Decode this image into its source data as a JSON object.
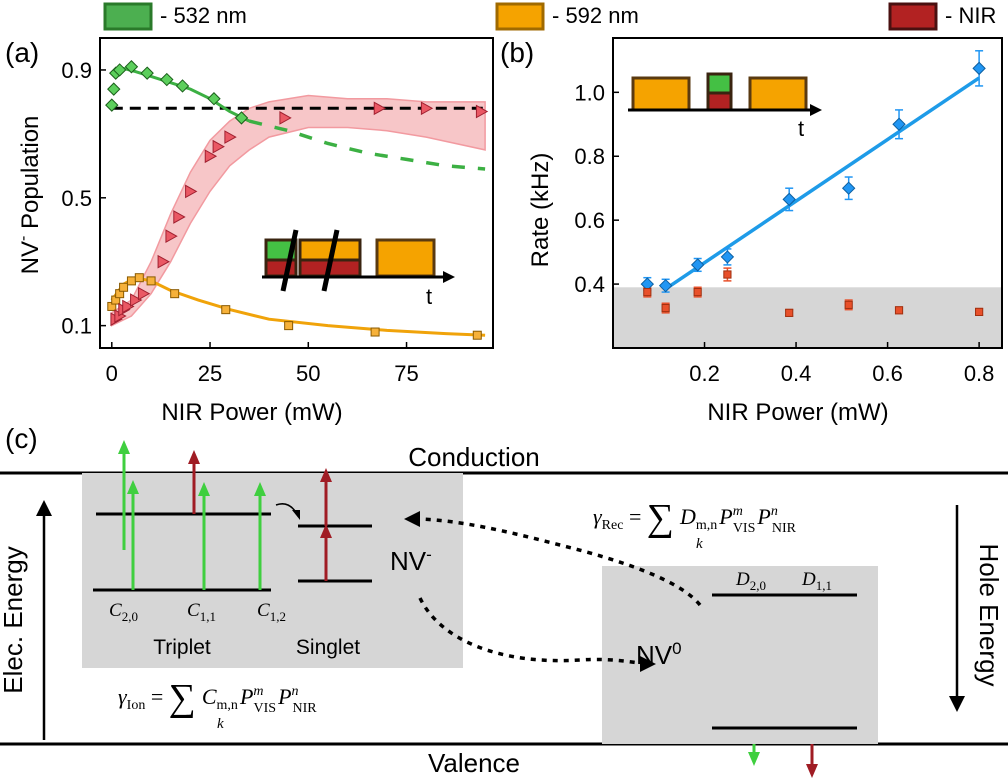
{
  "legend": [
    {
      "label": "- 532 nm",
      "color": "#4caf50",
      "edge": "#2a7a2a"
    },
    {
      "label": "- 592 nm",
      "color": "#f5a300",
      "edge": "#a06a00"
    },
    {
      "label": "- NIR",
      "color": "#b22222",
      "edge": "#4a1010"
    }
  ],
  "panel_a": {
    "label": "(a)",
    "pulse_t": "t"
  },
  "panel_b": {
    "label": "(b)",
    "pulse_t": "t"
  },
  "panel_c": {
    "label": "(c)",
    "conduction": "Conduction",
    "valence": "Valence",
    "elec_energy": "Elec. Energy",
    "hole_energy": "Hole Energy",
    "nv_minus": "NV",
    "nv_minus_sup": "-",
    "nv_zero": "NV",
    "nv_zero_sup": "0",
    "triplet": "Triplet",
    "singlet": "Singlet",
    "c20": "C",
    "c20_sub": "2,0",
    "c11": "C",
    "c11_sub": "1,1",
    "c12": "C",
    "c12_sub": "1,2",
    "d20": "D",
    "d20_sub": "2,0",
    "d11": "D",
    "d11_sub": "1,1",
    "gamma_rec": {
      "lhs": "γ",
      "lhs_sub": "Rec",
      "eq": " = ",
      "sum": "∑",
      "sum_idx": "k",
      "term": "D",
      "term_sub": "m,n",
      "p1": "P",
      "p1_sup": "m",
      "p1_sub": "VIS",
      "p2": "P",
      "p2_sup": "n",
      "p2_sub": "NIR"
    },
    "gamma_ion": {
      "lhs": "γ",
      "lhs_sub": "Ion",
      "eq": " = ",
      "sum": "∑",
      "sum_idx": "k",
      "term": "C",
      "term_sub": "m,n",
      "p1": "P",
      "p1_sup": "m",
      "p1_sub": "VIS",
      "p2": "P",
      "p2_sup": "n",
      "p2_sub": "NIR"
    }
  },
  "chart_data": [
    {
      "type": "line",
      "panel": "a",
      "xlabel": "NIR Power (mW)",
      "ylabel_main": "NV",
      "ylabel_sup": "-",
      "ylabel_rest": " Population",
      "xlim": [
        -3,
        97
      ],
      "ylim": [
        0.03,
        1.0
      ],
      "xticks": [
        0,
        25,
        50,
        75
      ],
      "yticks": [
        0.1,
        0.5,
        0.9
      ],
      "reference_line": 0.78,
      "series": [
        {
          "name": "532 nm",
          "color": "#3cb043",
          "marker": "diamond",
          "x": [
            0,
            0.5,
            1,
            2,
            5,
            9,
            14,
            18,
            26,
            33
          ],
          "y": [
            0.79,
            0.84,
            0.89,
            0.9,
            0.91,
            0.89,
            0.87,
            0.85,
            0.81,
            0.75
          ],
          "fit_x": [
            0,
            3,
            6,
            10,
            15,
            20,
            25,
            30,
            35
          ],
          "fit_y": [
            0.89,
            0.905,
            0.895,
            0.88,
            0.86,
            0.84,
            0.81,
            0.77,
            0.74
          ],
          "extrap_x": [
            35,
            45,
            55,
            65,
            75,
            85,
            95
          ],
          "extrap_y": [
            0.74,
            0.71,
            0.67,
            0.64,
            0.62,
            0.6,
            0.59
          ]
        },
        {
          "name": "592 nm",
          "color": "#f0a30a",
          "marker": "square",
          "x": [
            0,
            1,
            2,
            3,
            5,
            7,
            10,
            16,
            29,
            45,
            67,
            93
          ],
          "y": [
            0.16,
            0.18,
            0.2,
            0.22,
            0.24,
            0.25,
            0.24,
            0.2,
            0.15,
            0.1,
            0.08,
            0.07
          ],
          "fit_x": [
            0,
            3,
            6,
            10,
            15,
            22,
            30,
            40,
            55,
            70,
            85,
            95
          ],
          "fit_y": [
            0.18,
            0.23,
            0.25,
            0.24,
            0.21,
            0.18,
            0.15,
            0.12,
            0.1,
            0.085,
            0.075,
            0.07
          ]
        },
        {
          "name": "NIR",
          "color": "#e0525c",
          "marker": "triangle",
          "x": [
            1,
            2,
            3,
            4,
            6,
            8,
            13,
            15,
            17,
            20,
            25,
            27,
            30,
            44,
            68,
            80,
            94
          ],
          "y": [
            0.12,
            0.13,
            0.15,
            0.16,
            0.18,
            0.2,
            0.3,
            0.38,
            0.44,
            0.52,
            0.63,
            0.66,
            0.69,
            0.75,
            0.78,
            0.78,
            0.77
          ],
          "band_x": [
            0,
            5,
            10,
            15,
            20,
            25,
            30,
            35,
            40,
            50,
            60,
            70,
            80,
            95
          ],
          "band_lo": [
            0.1,
            0.13,
            0.2,
            0.3,
            0.42,
            0.52,
            0.6,
            0.65,
            0.69,
            0.72,
            0.72,
            0.71,
            0.69,
            0.65
          ],
          "band_hi": [
            0.14,
            0.18,
            0.3,
            0.45,
            0.58,
            0.68,
            0.74,
            0.78,
            0.8,
            0.82,
            0.81,
            0.81,
            0.8,
            0.8
          ]
        }
      ]
    },
    {
      "type": "scatter",
      "panel": "b",
      "xlabel": "NIR Power (mW)",
      "ylabel": "Rate (kHz)",
      "xlim": [
        0.0,
        0.85
      ],
      "ylim": [
        0.2,
        1.17
      ],
      "xticks": [
        0.2,
        0.4,
        0.6,
        0.8
      ],
      "yticks": [
        0.4,
        0.6,
        0.8,
        1.0
      ],
      "shaded_below": 0.39,
      "series": [
        {
          "name": "blue",
          "color": "#2196f3",
          "marker": "diamond",
          "x": [
            0.075,
            0.115,
            0.185,
            0.25,
            0.385,
            0.515,
            0.625,
            0.8
          ],
          "y": [
            0.4,
            0.395,
            0.46,
            0.485,
            0.665,
            0.7,
            0.9,
            1.075
          ],
          "err": [
            0.02,
            0.02,
            0.02,
            0.025,
            0.035,
            0.035,
            0.045,
            0.055
          ],
          "fit_x": [
            0.115,
            0.8
          ],
          "fit_y": [
            0.385,
            1.045
          ]
        },
        {
          "name": "red",
          "color": "#e8502a",
          "marker": "square",
          "x": [
            0.075,
            0.115,
            0.185,
            0.25,
            0.385,
            0.515,
            0.625,
            0.8
          ],
          "y": [
            0.375,
            0.325,
            0.375,
            0.43,
            0.31,
            0.335,
            0.318,
            0.313
          ],
          "err": [
            0.015,
            0.015,
            0.015,
            0.02,
            0.01,
            0.015,
            0.01,
            0.01
          ]
        }
      ]
    }
  ]
}
